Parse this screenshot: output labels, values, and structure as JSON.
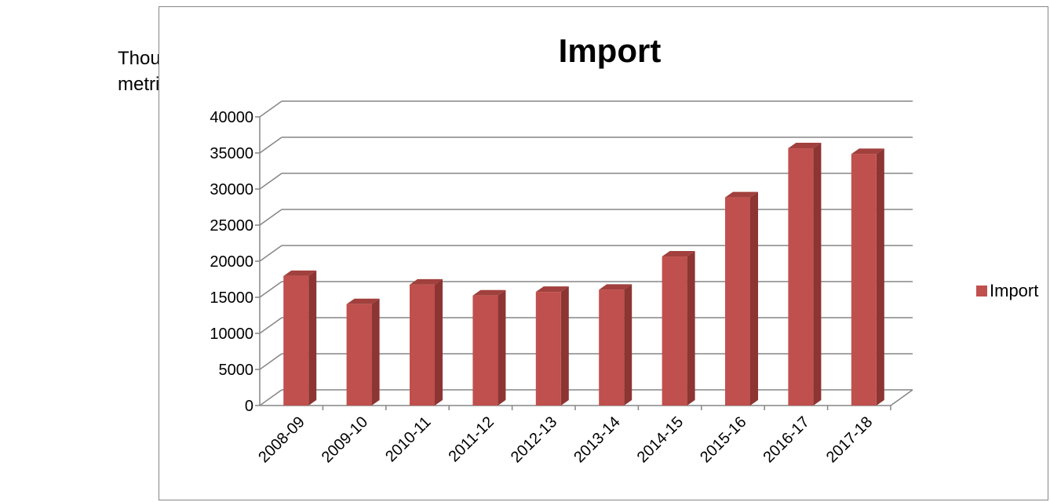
{
  "unit_label": {
    "line1": "Thousand",
    "line2": "metric tons"
  },
  "colors": {
    "bar_front": "#C0504D",
    "bar_side": "#8C3533",
    "bar_top": "#A1403D",
    "grid": "#868686",
    "frame": "#868686"
  },
  "chart_data": {
    "type": "bar",
    "title": "Import",
    "xlabel": "",
    "ylabel": "",
    "categories": [
      "2008-09",
      "2009-10",
      "2010-11",
      "2011-12",
      "2012-13",
      "2013-14",
      "2014-15",
      "2015-16",
      "2016-17",
      "2017-18"
    ],
    "series": [
      {
        "name": "Import",
        "values": [
          18600,
          14700,
          17400,
          15900,
          16400,
          16700,
          21300,
          29500,
          36300,
          35500
        ]
      }
    ],
    "ylim": [
      0,
      40000
    ],
    "yticks": [
      "0",
      "5000",
      "10000",
      "15000",
      "20000",
      "25000",
      "30000",
      "35000",
      "40000"
    ],
    "grid": true,
    "legend_position": "right",
    "three_d": true
  }
}
